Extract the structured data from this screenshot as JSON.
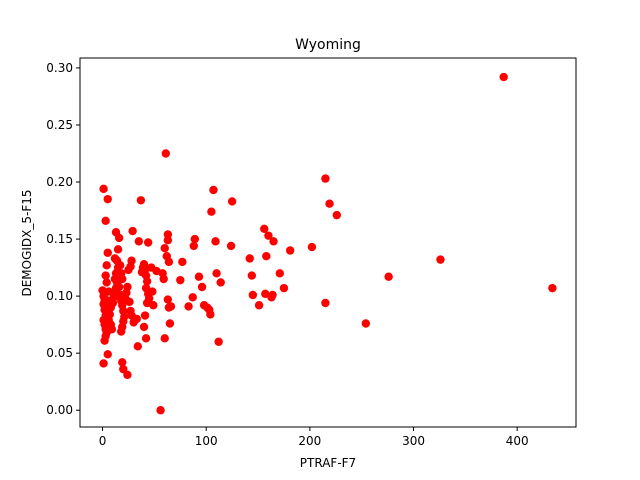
{
  "chart_data": {
    "type": "scatter",
    "title": "Wyoming",
    "xlabel": "PTRAF-F7",
    "ylabel": "DEMOGIDX_5-F15",
    "xlim": [
      -21.75,
      456.75
    ],
    "ylim": [
      -0.0147,
      0.3087
    ],
    "xticks": [
      0,
      100,
      200,
      300,
      400
    ],
    "yticks": [
      0.0,
      0.05,
      0.1,
      0.15,
      0.2,
      0.25,
      0.3
    ],
    "ytick_labels": [
      "0.00",
      "0.05",
      "0.10",
      "0.15",
      "0.20",
      "0.25",
      "0.30"
    ],
    "grid": false,
    "marker_color": "#ff0000",
    "series": [
      {
        "points": [
          [
            1,
            0.194
          ],
          [
            3,
            0.166
          ],
          [
            5,
            0.185
          ],
          [
            0,
            0.105
          ],
          [
            1,
            0.1
          ],
          [
            2,
            0.097
          ],
          [
            1,
            0.093
          ],
          [
            2,
            0.088
          ],
          [
            3,
            0.083
          ],
          [
            1,
            0.079
          ],
          [
            2,
            0.075
          ],
          [
            3,
            0.071
          ],
          [
            4,
            0.068
          ],
          [
            3,
            0.065
          ],
          [
            2,
            0.061
          ],
          [
            1,
            0.041
          ],
          [
            5,
            0.049
          ],
          [
            4,
            0.112
          ],
          [
            3,
            0.118
          ],
          [
            4,
            0.127
          ],
          [
            5,
            0.138
          ],
          [
            6,
            0.104
          ],
          [
            6,
            0.096
          ],
          [
            7,
            0.093
          ],
          [
            8,
            0.09
          ],
          [
            7,
            0.084
          ],
          [
            6,
            0.079
          ],
          [
            8,
            0.075
          ],
          [
            9,
            0.071
          ],
          [
            10,
            0.094
          ],
          [
            11,
            0.099
          ],
          [
            12,
            0.102
          ],
          [
            13,
            0.107
          ],
          [
            14,
            0.112
          ],
          [
            12,
            0.115
          ],
          [
            13,
            0.12
          ],
          [
            15,
            0.125
          ],
          [
            14,
            0.131
          ],
          [
            12,
            0.133
          ],
          [
            13,
            0.156
          ],
          [
            15,
            0.141
          ],
          [
            16,
            0.151
          ],
          [
            17,
            0.127
          ],
          [
            18,
            0.12
          ],
          [
            19,
            0.115
          ],
          [
            16,
            0.108
          ],
          [
            17,
            0.101
          ],
          [
            18,
            0.096
          ],
          [
            19,
            0.092
          ],
          [
            20,
            0.087
          ],
          [
            21,
            0.082
          ],
          [
            20,
            0.078
          ],
          [
            19,
            0.073
          ],
          [
            18,
            0.069
          ],
          [
            19,
            0.042
          ],
          [
            20,
            0.036
          ],
          [
            24,
            0.031
          ],
          [
            22,
            0.098
          ],
          [
            23,
            0.103
          ],
          [
            24,
            0.108
          ],
          [
            25,
            0.123
          ],
          [
            27,
            0.126
          ],
          [
            28,
            0.131
          ],
          [
            29,
            0.157
          ],
          [
            26,
            0.095
          ],
          [
            27,
            0.087
          ],
          [
            28,
            0.083
          ],
          [
            30,
            0.077
          ],
          [
            33,
            0.08
          ],
          [
            34,
            0.056
          ],
          [
            35,
            0.148
          ],
          [
            37,
            0.184
          ],
          [
            38,
            0.121
          ],
          [
            39,
            0.125
          ],
          [
            40,
            0.128
          ],
          [
            41,
            0.123
          ],
          [
            42,
            0.118
          ],
          [
            43,
            0.113
          ],
          [
            42,
            0.107
          ],
          [
            44,
            0.102
          ],
          [
            45,
            0.098
          ],
          [
            43,
            0.094
          ],
          [
            41,
            0.083
          ],
          [
            40,
            0.073
          ],
          [
            42,
            0.063
          ],
          [
            44,
            0.147
          ],
          [
            47,
            0.125
          ],
          [
            48,
            0.104
          ],
          [
            49,
            0.092
          ],
          [
            52,
            0.122
          ],
          [
            56,
            0.0
          ],
          [
            58,
            0.12
          ],
          [
            59,
            0.115
          ],
          [
            60,
            0.142
          ],
          [
            60,
            0.063
          ],
          [
            61,
            0.225
          ],
          [
            62,
            0.135
          ],
          [
            63,
            0.149
          ],
          [
            63,
            0.154
          ],
          [
            64,
            0.13
          ],
          [
            63,
            0.097
          ],
          [
            64,
            0.09
          ],
          [
            65,
            0.076
          ],
          [
            66,
            0.091
          ],
          [
            75,
            0.114
          ],
          [
            77,
            0.13
          ],
          [
            83,
            0.091
          ],
          [
            87,
            0.099
          ],
          [
            88,
            0.144
          ],
          [
            89,
            0.15
          ],
          [
            93,
            0.117
          ],
          [
            96,
            0.108
          ],
          [
            98,
            0.092
          ],
          [
            101,
            0.09
          ],
          [
            103,
            0.088
          ],
          [
            104,
            0.084
          ],
          [
            105,
            0.174
          ],
          [
            107,
            0.193
          ],
          [
            109,
            0.148
          ],
          [
            110,
            0.12
          ],
          [
            112,
            0.06
          ],
          [
            114,
            0.112
          ],
          [
            124,
            0.144
          ],
          [
            125,
            0.183
          ],
          [
            142,
            0.133
          ],
          [
            144,
            0.118
          ],
          [
            145,
            0.101
          ],
          [
            151,
            0.092
          ],
          [
            156,
            0.159
          ],
          [
            157,
            0.102
          ],
          [
            158,
            0.135
          ],
          [
            160,
            0.153
          ],
          [
            163,
            0.099
          ],
          [
            164,
            0.101
          ],
          [
            165,
            0.148
          ],
          [
            171,
            0.12
          ],
          [
            175,
            0.107
          ],
          [
            181,
            0.14
          ],
          [
            202,
            0.143
          ],
          [
            215,
            0.203
          ],
          [
            215,
            0.094
          ],
          [
            219,
            0.181
          ],
          [
            226,
            0.171
          ],
          [
            254,
            0.076
          ],
          [
            276,
            0.117
          ],
          [
            326,
            0.132
          ],
          [
            387,
            0.292
          ],
          [
            434,
            0.107
          ]
        ]
      }
    ]
  }
}
